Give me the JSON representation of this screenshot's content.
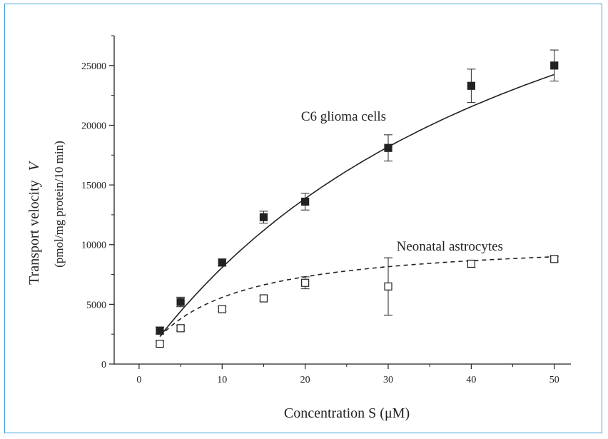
{
  "chart_data": {
    "type": "scatter",
    "title": "",
    "xlabel": "Concentration S (μM)",
    "ylabel_main": "Transport velocity",
    "ylabel_var": "V",
    "ylabel_unit": "(pmol/mg protein/10 min)",
    "xlim": [
      -3,
      52
    ],
    "ylim": [
      0,
      27500
    ],
    "x_ticks": [
      0,
      10,
      20,
      30,
      40,
      50
    ],
    "y_ticks": [
      0,
      5000,
      10000,
      15000,
      20000,
      25000
    ],
    "grid": false,
    "legend": "none",
    "series": [
      {
        "name": "C6 glioma cells",
        "marker": "filled-square",
        "line": "solid",
        "color": "#222222",
        "x": [
          2.5,
          5,
          10,
          15,
          20,
          30,
          40,
          50
        ],
        "y": [
          2800,
          5200,
          8500,
          12300,
          13600,
          18100,
          23300,
          25000
        ],
        "err": [
          300,
          400,
          300,
          500,
          700,
          1100,
          1400,
          1300
        ],
        "fit_vmax": 48500,
        "fit_km": 50
      },
      {
        "name": "Neonatal astrocytes",
        "marker": "open-square",
        "line": "dashed",
        "color": "#222222",
        "x": [
          2.5,
          5,
          10,
          15,
          20,
          30,
          40,
          50
        ],
        "y": [
          1700,
          3000,
          4600,
          5500,
          6800,
          6500,
          8400,
          8800
        ],
        "err": [
          200,
          200,
          200,
          200,
          500,
          2400,
          300,
          200
        ],
        "fit_vmax": 10600,
        "fit_km": 9
      }
    ]
  }
}
